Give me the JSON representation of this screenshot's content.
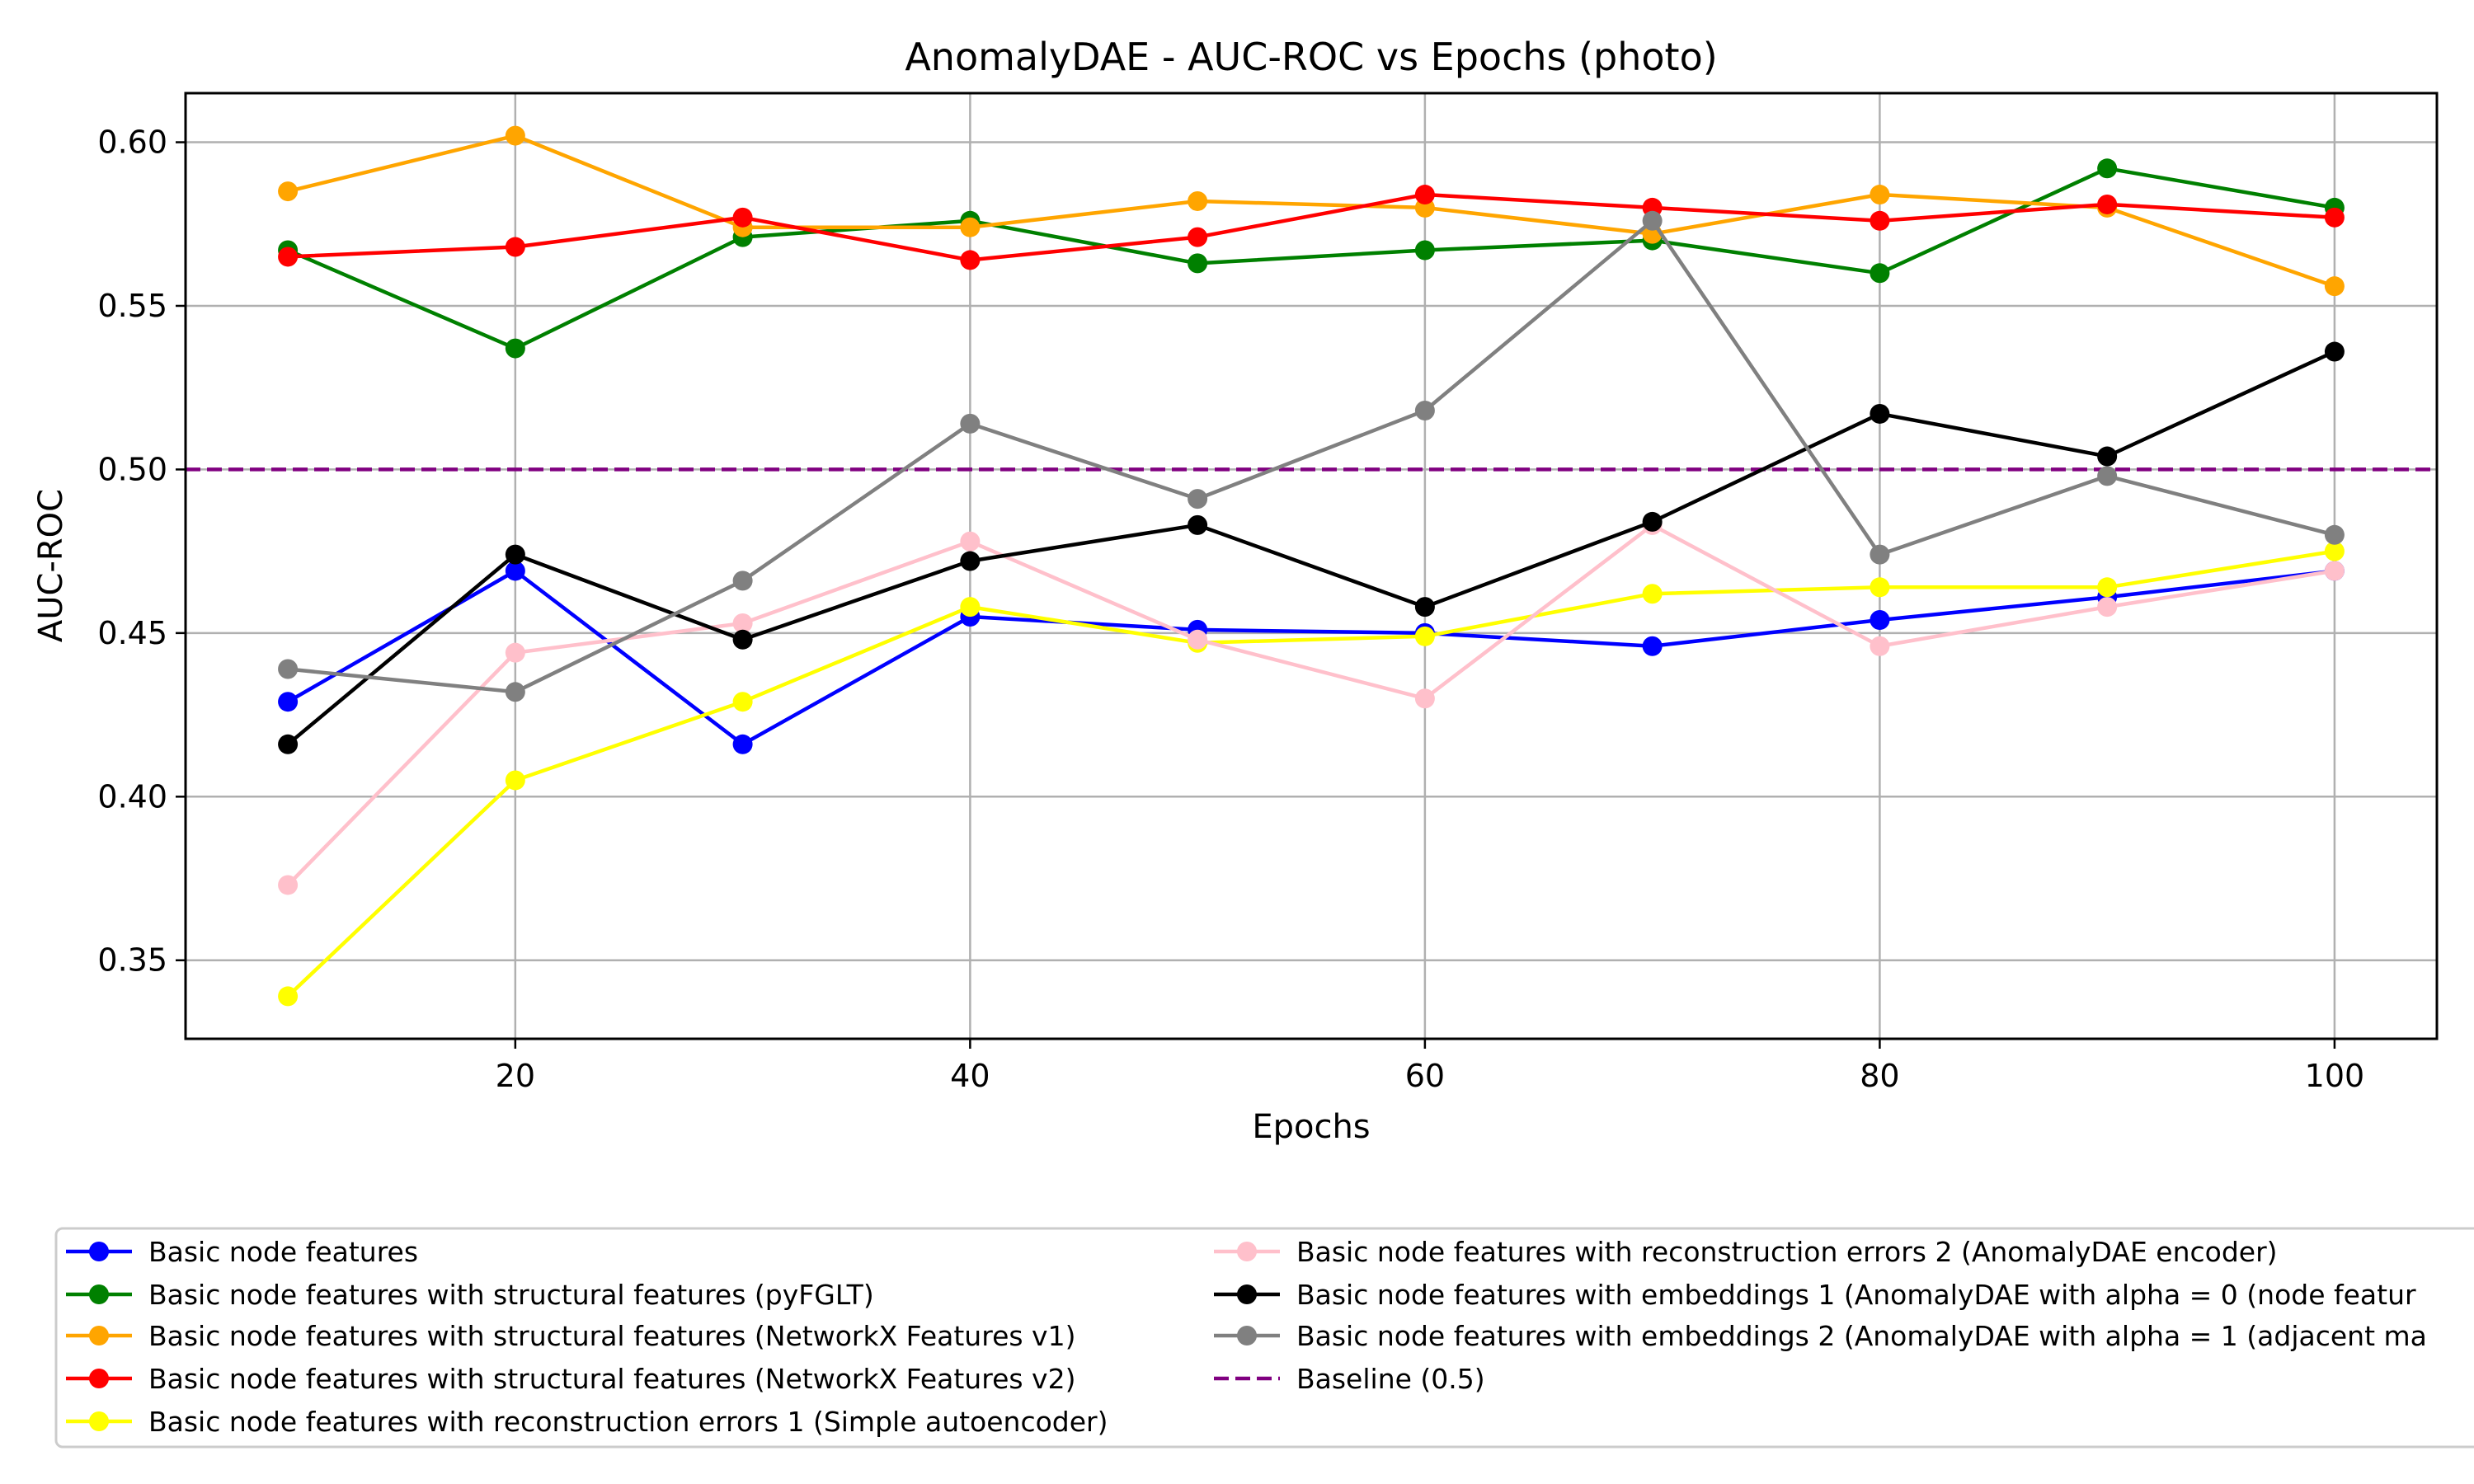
{
  "chart_data": {
    "type": "line",
    "title": "AnomalyDAE - AUC-ROC vs Epochs (photo)",
    "xlabel": "Epochs",
    "ylabel": "AUC-ROC",
    "xlim": [
      5.5,
      104.5
    ],
    "ylim": [
      0.326,
      0.615
    ],
    "x_ticks": [
      20,
      40,
      60,
      80,
      100
    ],
    "x_tick_labels": [
      "20",
      "40",
      "60",
      "80",
      "100"
    ],
    "y_ticks": [
      0.35,
      0.4,
      0.45,
      0.5,
      0.55,
      0.6
    ],
    "y_tick_labels": [
      "0.35",
      "0.40",
      "0.45",
      "0.50",
      "0.55",
      "0.60"
    ],
    "grid": true,
    "legend_position": "below plot, two columns",
    "x": [
      10,
      20,
      30,
      40,
      50,
      60,
      70,
      80,
      90,
      100
    ],
    "series": [
      {
        "name": "Basic node features",
        "color": "#0000ff",
        "values": [
          0.429,
          0.469,
          0.416,
          0.455,
          0.451,
          0.45,
          0.446,
          0.454,
          0.461,
          0.469
        ]
      },
      {
        "name": "Basic node features with structural features (pyFGLT)",
        "color": "#008000",
        "values": [
          0.567,
          0.537,
          0.571,
          0.576,
          0.563,
          0.567,
          0.57,
          0.56,
          0.592,
          0.58
        ]
      },
      {
        "name": "Basic node features with structural features (NetworkX Features v1)",
        "color": "#ffa500",
        "values": [
          0.585,
          0.602,
          0.574,
          0.574,
          0.582,
          0.58,
          0.572,
          0.584,
          0.58,
          0.556
        ]
      },
      {
        "name": "Basic node features with structural features (NetworkX Features v2)",
        "color": "#ff0000",
        "values": [
          0.565,
          0.568,
          0.577,
          0.564,
          0.571,
          0.584,
          0.58,
          0.576,
          0.581,
          0.577
        ]
      },
      {
        "name": "Basic node features with reconstruction errors 1 (Simple autoencoder)",
        "color": "#ffff00",
        "values": [
          0.339,
          0.405,
          0.429,
          0.458,
          0.447,
          0.449,
          0.462,
          0.464,
          0.464,
          0.475
        ]
      },
      {
        "name": "Basic node features with reconstruction errors 2 (AnomalyDAE encoder)",
        "color": "#ffc0cb",
        "values": [
          0.373,
          0.444,
          0.453,
          0.478,
          0.448,
          0.43,
          0.483,
          0.446,
          0.458,
          0.469
        ]
      },
      {
        "name": "Basic node features with embeddings 1 (AnomalyDAE with alpha = 0 (node featur",
        "color": "#000000",
        "values": [
          0.416,
          0.474,
          0.448,
          0.472,
          0.483,
          0.458,
          0.484,
          0.517,
          0.504,
          0.536
        ]
      },
      {
        "name": "Basic node features with embeddings 2 (AnomalyDAE with alpha = 1 (adjacent ma",
        "color": "#808080",
        "values": [
          0.439,
          0.432,
          0.466,
          0.514,
          0.491,
          0.518,
          0.576,
          0.474,
          0.498,
          0.48
        ]
      }
    ],
    "baseline": {
      "name": "Baseline (0.5)",
      "value": 0.5,
      "color": "#800080",
      "style": "dashed"
    }
  }
}
